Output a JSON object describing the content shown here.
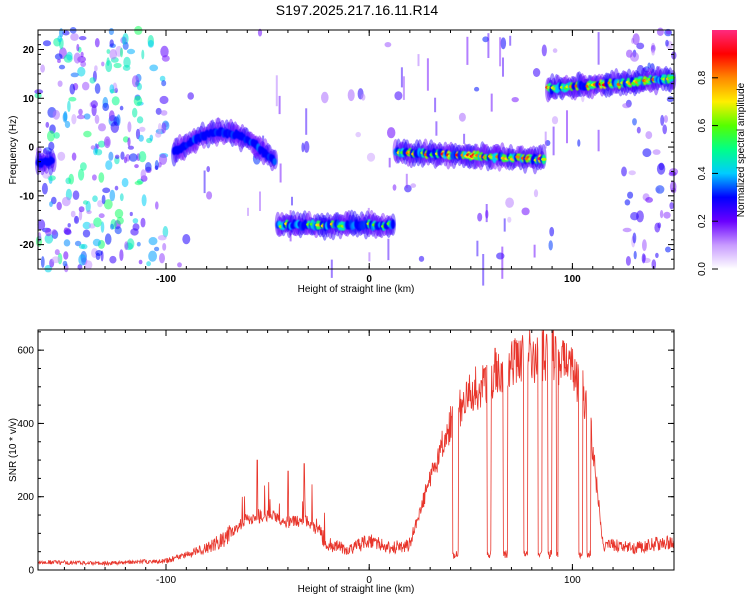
{
  "chart_data": [
    {
      "type": "heatmap",
      "title": "S197.2025.217.16.11.R14",
      "xlabel": "Height of straight line (km)",
      "ylabel": "Frequency (Hz)",
      "xlim": [
        -163,
        150
      ],
      "ylim": [
        -25,
        24
      ],
      "x_ticks": [
        "-100",
        "0",
        "100"
      ],
      "y_ticks": [
        "-20",
        "-10",
        "0",
        "10",
        "20"
      ],
      "colorbar": {
        "label": "Normalized spectral amplitude",
        "range": [
          0.0,
          1.0
        ],
        "ticks": [
          "0.0",
          "0.2",
          "0.4",
          "0.6",
          "0.8"
        ],
        "colors": [
          "#ffffff",
          "#c89bff",
          "#6a00ff",
          "#0000ff",
          "#00ccff",
          "#00ff88",
          "#55ff00",
          "#ffee00",
          "#ff8800",
          "#ff0000",
          "#ff2a7f"
        ]
      },
      "segments": [
        {
          "x_start": -163,
          "x_end": -155,
          "freq_start": -3,
          "freq_end": -3,
          "peak_amplitude": 0.35
        },
        {
          "x_start": -96,
          "x_end": -46,
          "freq_start": -1,
          "freq_end": -3,
          "freq_peak": 3,
          "peak_amplitude": 0.5
        },
        {
          "x_start": -45,
          "x_end": 12,
          "freq_start": -16,
          "freq_end": -16,
          "peak_amplitude": 0.75
        },
        {
          "x_start": 13,
          "x_end": 86,
          "freq_start": -1,
          "freq_end": -2.5,
          "peak_amplitude": 0.95
        },
        {
          "x_start": 88,
          "x_end": 150,
          "freq_start": 12,
          "freq_end": 14,
          "peak_amplitude": 0.9
        }
      ]
    },
    {
      "type": "line",
      "xlabel": "Height of straight line (km)",
      "ylabel": "SNR (10 * v/v)",
      "xlim": [
        -163,
        150
      ],
      "ylim": [
        0,
        655
      ],
      "x_ticks": [
        "-100",
        "0",
        "100"
      ],
      "y_ticks": [
        "0",
        "200",
        "400",
        "600"
      ],
      "line_color": "#e8352b",
      "envelope": {
        "x": [
          -163,
          -130,
          -100,
          -90,
          -80,
          -70,
          -60,
          -50,
          -40,
          -30,
          -20,
          -10,
          0,
          10,
          20,
          30,
          40,
          50,
          60,
          70,
          80,
          90,
          100,
          108,
          115,
          130,
          150
        ],
        "y": [
          22,
          18,
          25,
          40,
          60,
          90,
          140,
          150,
          130,
          135,
          70,
          55,
          80,
          60,
          70,
          250,
          400,
          480,
          520,
          560,
          580,
          590,
          540,
          440,
          70,
          60,
          80
        ]
      },
      "dropouts": [
        [
          41,
          44
        ],
        [
          58,
          60
        ],
        [
          66,
          68
        ],
        [
          76,
          78
        ],
        [
          83,
          85
        ],
        [
          88,
          90
        ],
        [
          92,
          93
        ],
        [
          103,
          105
        ],
        [
          107,
          109
        ]
      ],
      "spikes": [
        {
          "x": -55,
          "y": 300
        },
        {
          "x": -40,
          "y": 270
        },
        {
          "x": -32,
          "y": 290
        },
        {
          "x": 62,
          "y": 605
        },
        {
          "x": 72,
          "y": 620
        },
        {
          "x": 90,
          "y": 652
        },
        {
          "x": 95,
          "y": 610
        }
      ]
    }
  ]
}
